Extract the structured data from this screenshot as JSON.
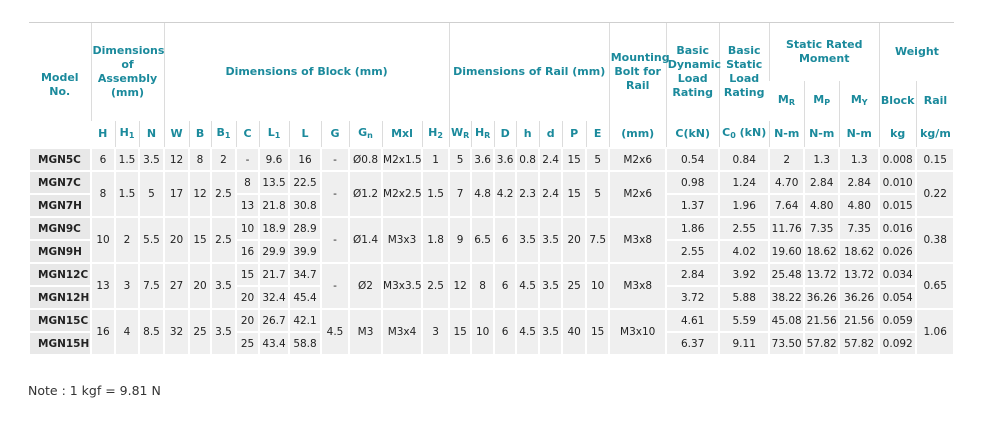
{
  "header": {
    "model": "Model No.",
    "groups": [
      "Dimensions of Assembly (mm)",
      "Dimensions of Block (mm)",
      "Dimensions of Rail (mm)",
      "Mounting Bolt for Rail",
      "Basic Dynamic Load Rating",
      "Basic Static Load Rating",
      "Static Rated Moment",
      "Weight"
    ],
    "moment": [
      {
        "text": "M",
        "sub": "R"
      },
      {
        "text": "M",
        "sub": "P"
      },
      {
        "text": "M",
        "sub": "Y"
      }
    ],
    "weight": [
      "Block",
      "Rail"
    ],
    "columns": [
      "H",
      {
        "text": "H",
        "sub": "1"
      },
      "N",
      "W",
      "B",
      {
        "text": "B",
        "sub": "1"
      },
      "C",
      {
        "text": "L",
        "sub": "1"
      },
      "L",
      "G",
      {
        "text": "G",
        "sub": "n"
      },
      "Mxl",
      {
        "text": "H",
        "sub": "2"
      },
      {
        "text": "W",
        "sub": "R"
      },
      {
        "text": "H",
        "sub": "R"
      },
      "D",
      "h",
      "d",
      "P",
      "E",
      "(mm)",
      "C(kN)",
      {
        "text": "C",
        "sub": "0",
        "after": " (kN)"
      },
      "N-m",
      "N-m",
      "N-m",
      "kg",
      "kg/m"
    ]
  },
  "table": {
    "rows": [
      [
        "MGN5C",
        "6",
        "1.5",
        "3.5",
        "12",
        "8",
        "2",
        "-",
        "9.6",
        "16",
        "-",
        "Ø0.8",
        "M2x1.5",
        "1",
        "5",
        "3.6",
        "3.6",
        "0.8",
        "2.4",
        "15",
        "5",
        "M2x6",
        "0.54",
        "0.84",
        "2",
        "1.3",
        "1.3",
        "0.008",
        "0.15"
      ],
      [
        "MGN7C",
        "8",
        "1.5",
        "5",
        "17",
        "12",
        "2.5",
        "8",
        "13.5",
        "22.5",
        "-",
        "Ø1.2",
        "M2x2.5",
        "1.5",
        "7",
        "4.8",
        "4.2",
        "2.3",
        "2.4",
        "15",
        "5",
        "M2x6",
        "0.98",
        "1.24",
        "4.70",
        "2.84",
        "2.84",
        "0.010",
        "0.22"
      ],
      [
        "MGN7H",
        null,
        null,
        null,
        null,
        null,
        null,
        "13",
        "21.8",
        "30.8",
        null,
        null,
        null,
        null,
        null,
        null,
        null,
        null,
        null,
        null,
        null,
        null,
        "1.37",
        "1.96",
        "7.64",
        "4.80",
        "4.80",
        "0.015",
        null
      ],
      [
        "MGN9C",
        "10",
        "2",
        "5.5",
        "20",
        "15",
        "2.5",
        "10",
        "18.9",
        "28.9",
        "-",
        "Ø1.4",
        "M3x3",
        "1.8",
        "9",
        "6.5",
        "6",
        "3.5",
        "3.5",
        "20",
        "7.5",
        "M3x8",
        "1.86",
        "2.55",
        "11.76",
        "7.35",
        "7.35",
        "0.016",
        "0.38"
      ],
      [
        "MGN9H",
        null,
        null,
        null,
        null,
        null,
        null,
        "16",
        "29.9",
        "39.9",
        null,
        null,
        null,
        null,
        null,
        null,
        null,
        null,
        null,
        null,
        null,
        null,
        "2.55",
        "4.02",
        "19.60",
        "18.62",
        "18.62",
        "0.026",
        null
      ],
      [
        "MGN12C",
        "13",
        "3",
        "7.5",
        "27",
        "20",
        "3.5",
        "15",
        "21.7",
        "34.7",
        "-",
        "Ø2",
        "M3x3.5",
        "2.5",
        "12",
        "8",
        "6",
        "4.5",
        "3.5",
        "25",
        "10",
        "M3x8",
        "2.84",
        "3.92",
        "25.48",
        "13.72",
        "13.72",
        "0.034",
        "0.65"
      ],
      [
        "MGN12H",
        null,
        null,
        null,
        null,
        null,
        null,
        "20",
        "32.4",
        "45.4",
        null,
        null,
        null,
        null,
        null,
        null,
        null,
        null,
        null,
        null,
        null,
        null,
        "3.72",
        "5.88",
        "38.22",
        "36.26",
        "36.26",
        "0.054",
        null
      ],
      [
        "MGN15C",
        "16",
        "4",
        "8.5",
        "32",
        "25",
        "3.5",
        "20",
        "26.7",
        "42.1",
        "4.5",
        "M3",
        "M3x4",
        "3",
        "15",
        "10",
        "6",
        "4.5",
        "3.5",
        "40",
        "15",
        "M3x10",
        "4.61",
        "5.59",
        "45.08",
        "21.56",
        "21.56",
        "0.059",
        "1.06"
      ],
      [
        "MGN15H",
        null,
        null,
        null,
        null,
        null,
        null,
        "25",
        "43.4",
        "58.8",
        null,
        null,
        null,
        null,
        null,
        null,
        null,
        null,
        null,
        null,
        null,
        null,
        "6.37",
        "9.11",
        "73.50",
        "57.82",
        "57.82",
        "0.092",
        null
      ]
    ]
  },
  "note": "Note : 1 kgf = 9.81 N"
}
